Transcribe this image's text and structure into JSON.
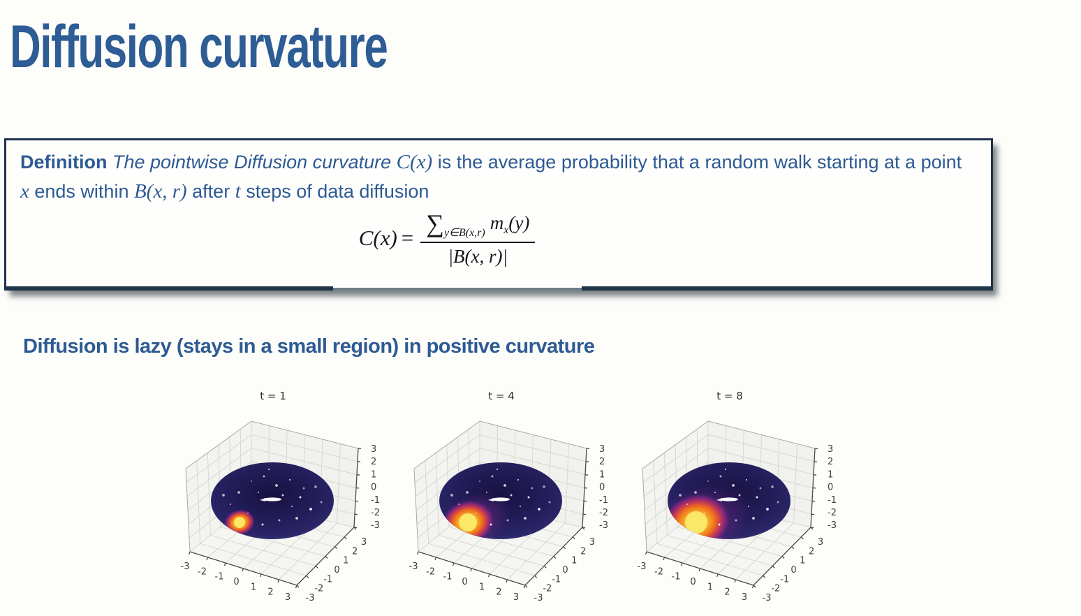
{
  "slide": {
    "title": "Diffusion curvature",
    "subtitle": "Diffusion is lazy (stays in a small region) in positive curvature",
    "colors": {
      "heading_blue": "#2e5c95",
      "body_blue": "#2d5a93",
      "box_border": "#20344a",
      "formula_ink": "#161616",
      "torus_base": "#221c58",
      "hotspot_core": "#fdf07a"
    }
  },
  "definition": {
    "keyword": "Definition ",
    "lead_italic": "The pointwise Diffusion curvature ",
    "math_Cx": "C(x)",
    "mid": " is the average probability that a random walk starting at a point ",
    "math_x": "x",
    "within": " ends within ",
    "math_Bxr": "B(x, r)",
    "after": " after ",
    "math_t": "t",
    "tail": " steps of data diffusion",
    "formula": {
      "lhs": "C(x)",
      "eq": "=",
      "sum": "∑",
      "sum_sub": "y∈B(x,r)",
      "m": "m",
      "m_sub": "x",
      "m_arg": "(y)",
      "denominator": "|B(x, r)|"
    }
  },
  "chart_data": {
    "type": "scatter",
    "projection": "3d",
    "description": "Torus point cloud colored by random-walk diffusion probability mass after t steps; bright yellow-orange hotspot in negative-z / negative-x region grows as t increases",
    "colormap": "inferno-style: dark indigo base, yellow/orange/magenta hotspot, sparse white speckles",
    "grid": true,
    "xlim": [
      -3,
      3
    ],
    "ylim": [
      -3,
      3
    ],
    "zlim": [
      -3,
      3
    ],
    "x_ticks": [
      "-3",
      "-2",
      "-1",
      "0",
      "1",
      "2",
      "3"
    ],
    "y_ticks": [
      "-3",
      "-2",
      "-1",
      "0",
      "1",
      "2",
      "3"
    ],
    "z_ticks": [
      "3",
      "2",
      "1",
      "0",
      "-1",
      "-2",
      "-3"
    ],
    "plots": [
      {
        "title": "t = 1",
        "hotspot": {
          "core_r": 8,
          "outer_r": 20,
          "glow_r": 0
        }
      },
      {
        "title": "t = 4",
        "hotspot": {
          "core_r": 13,
          "outer_r": 34,
          "glow_r": 46
        }
      },
      {
        "title": "t = 8",
        "hotspot": {
          "core_r": 16,
          "outer_r": 44,
          "glow_r": 62
        }
      }
    ]
  }
}
